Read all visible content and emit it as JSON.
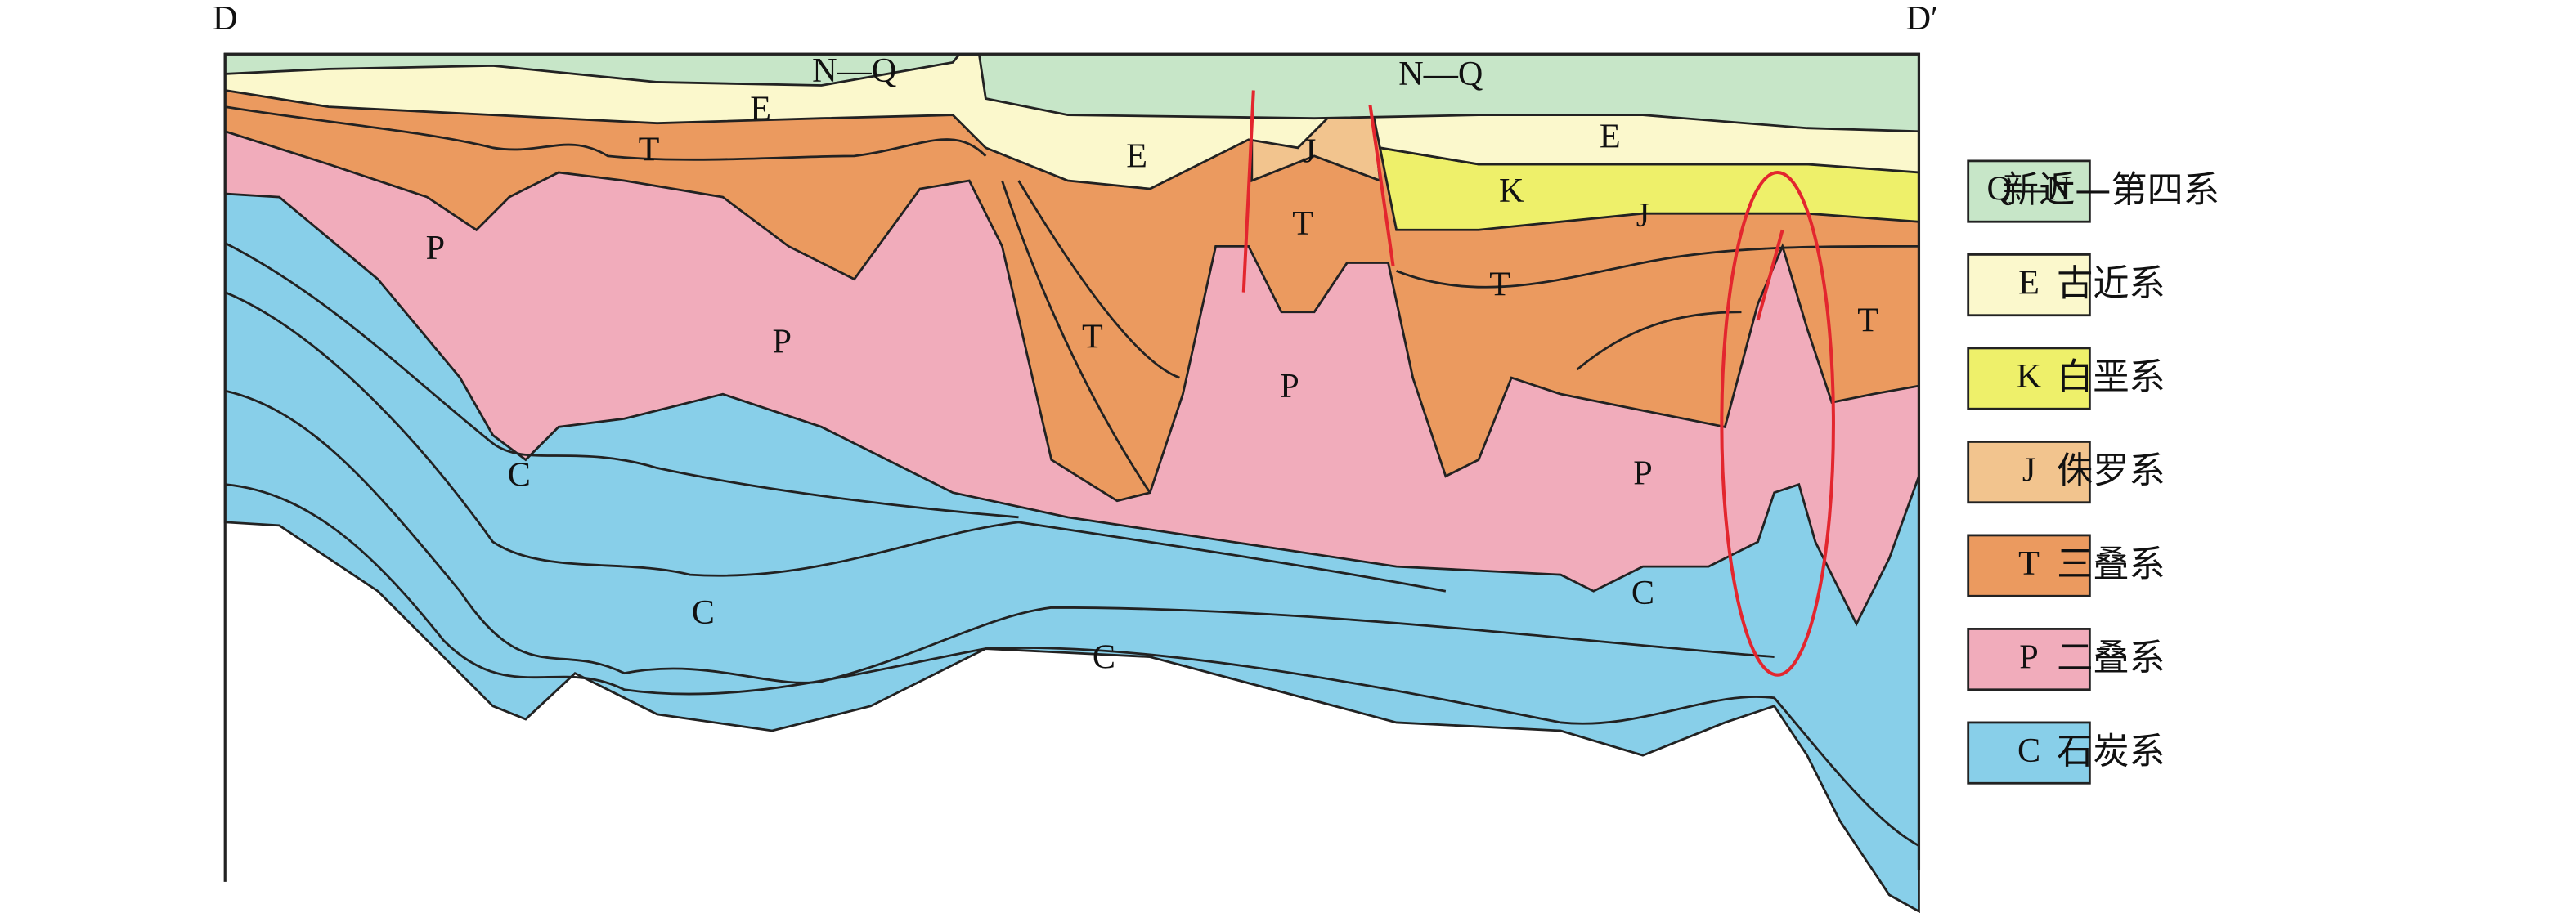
{
  "section": {
    "start": "D",
    "end": "D′"
  },
  "labels": [
    "N—Q",
    "N—Q",
    "E",
    "E",
    "E",
    "J",
    "K",
    "J",
    "T",
    "T",
    "T",
    "T",
    "T",
    "P",
    "P",
    "P",
    "P",
    "C",
    "C",
    "C",
    "C"
  ],
  "legend": [
    {
      "code": "Q—N",
      "name": "新近—第四系",
      "color": "#c7e6c8"
    },
    {
      "code": "E",
      "name": "古近系",
      "color": "#fbf8cc"
    },
    {
      "code": "K",
      "name": "白垩系",
      "color": "#eef06a"
    },
    {
      "code": "J",
      "name": "侏罗系",
      "color": "#f2c48e"
    },
    {
      "code": "T",
      "name": "三叠系",
      "color": "#eb9a5f"
    },
    {
      "code": "P",
      "name": "二叠系",
      "color": "#f1acbb"
    },
    {
      "code": "C",
      "name": "石炭系",
      "color": "#88cfe9"
    }
  ]
}
